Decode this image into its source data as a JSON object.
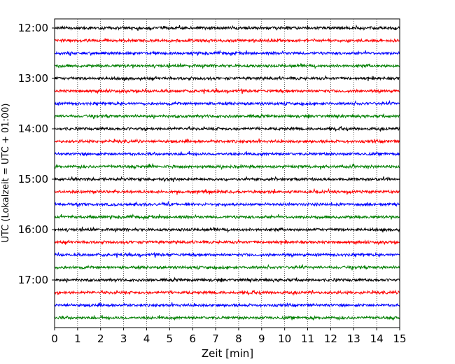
{
  "chart_data": {
    "type": "line",
    "title": "",
    "xlabel": "Zeit  [min]",
    "ylabel": "UTC (Lokalzeit = UTC + 01:00)",
    "xlim": [
      0,
      15
    ],
    "x_ticks": [
      "0",
      "1",
      "2",
      "3",
      "4",
      "5",
      "6",
      "7",
      "8",
      "9",
      "10",
      "11",
      "12",
      "13",
      "14",
      "15"
    ],
    "y_tick_labels": [
      "12:00",
      "13:00",
      "14:00",
      "15:00",
      "16:00",
      "17:00"
    ],
    "grid": "vertical dotted",
    "trace_interval_min": 15,
    "start_time": "12:00",
    "trace_count": 24,
    "trace_color_cycle": [
      "#000000",
      "#ff0000",
      "#0000ff",
      "#007f00"
    ],
    "series": [
      {
        "start": "12:00",
        "color": "#000000"
      },
      {
        "start": "12:15",
        "color": "#ff0000"
      },
      {
        "start": "12:30",
        "color": "#0000ff"
      },
      {
        "start": "12:45",
        "color": "#007f00"
      },
      {
        "start": "13:00",
        "color": "#000000"
      },
      {
        "start": "13:15",
        "color": "#ff0000"
      },
      {
        "start": "13:30",
        "color": "#0000ff"
      },
      {
        "start": "13:45",
        "color": "#007f00"
      },
      {
        "start": "14:00",
        "color": "#000000"
      },
      {
        "start": "14:15",
        "color": "#ff0000"
      },
      {
        "start": "14:30",
        "color": "#0000ff"
      },
      {
        "start": "14:45",
        "color": "#007f00"
      },
      {
        "start": "15:00",
        "color": "#000000"
      },
      {
        "start": "15:15",
        "color": "#ff0000"
      },
      {
        "start": "15:30",
        "color": "#0000ff"
      },
      {
        "start": "15:45",
        "color": "#007f00"
      },
      {
        "start": "16:00",
        "color": "#000000"
      },
      {
        "start": "16:15",
        "color": "#ff0000"
      },
      {
        "start": "16:30",
        "color": "#0000ff"
      },
      {
        "start": "16:45",
        "color": "#007f00"
      },
      {
        "start": "17:00",
        "color": "#000000"
      },
      {
        "start": "17:15",
        "color": "#ff0000"
      },
      {
        "start": "17:30",
        "color": "#0000ff"
      },
      {
        "start": "17:45",
        "color": "#007f00"
      }
    ]
  }
}
